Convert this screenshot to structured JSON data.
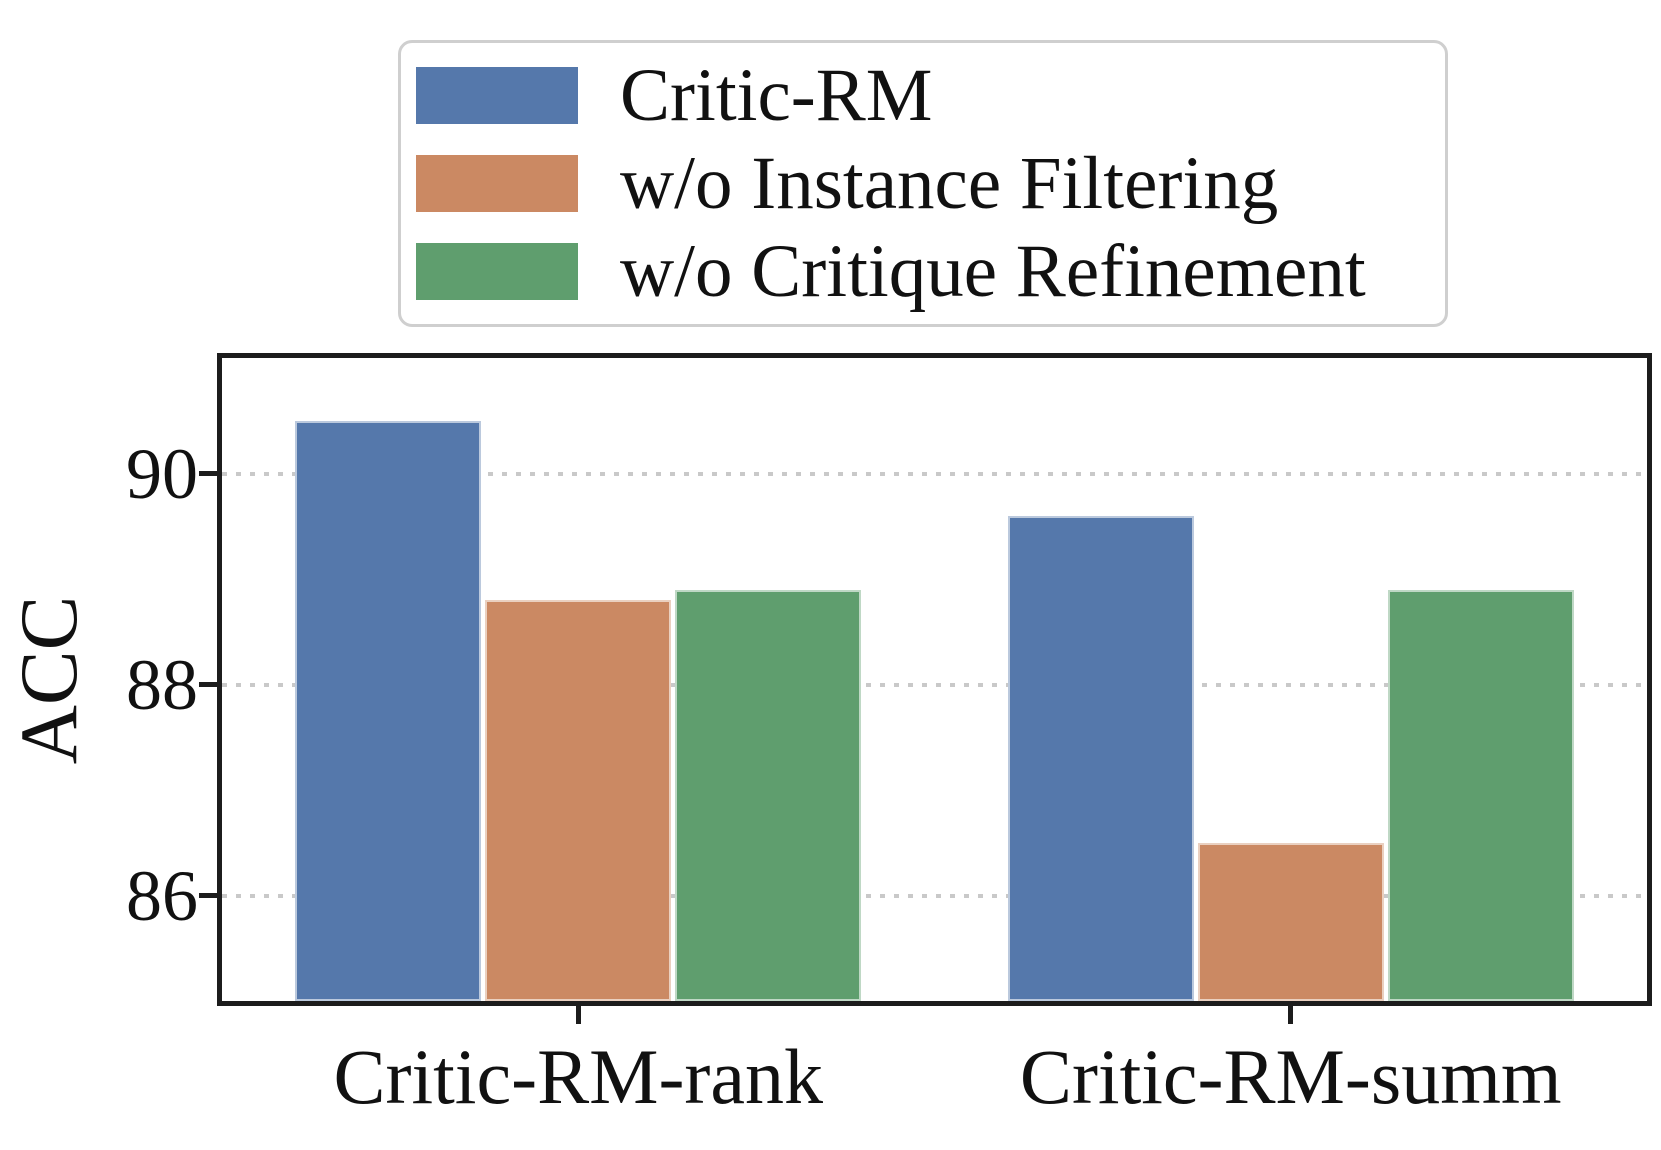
{
  "chart_data": {
    "type": "bar",
    "title": "",
    "categories": [
      "Critic-RM-rank",
      "Critic-RM-summ"
    ],
    "series": [
      {
        "name": "Critic-RM",
        "color": "#5578AB",
        "values": [
          90.5,
          89.6
        ]
      },
      {
        "name": "w/o Instance Filtering",
        "color": "#CB8963",
        "values": [
          88.8,
          86.5
        ]
      },
      {
        "name": "w/o Critique Refinement",
        "color": "#5F9E6E",
        "values": [
          88.9,
          88.9
        ]
      }
    ],
    "xlabel": "",
    "ylabel": "ACC",
    "yticks": [
      "86",
      "88",
      "90"
    ],
    "ylim": [
      85,
      91.1
    ],
    "grid": "horizontal dotted",
    "legend_position": "top-center",
    "colors": {
      "axis": "#1c1c1c",
      "gridline": "#c9c9c9",
      "legend_border": "#cfcfcf",
      "text": "#111111"
    }
  }
}
